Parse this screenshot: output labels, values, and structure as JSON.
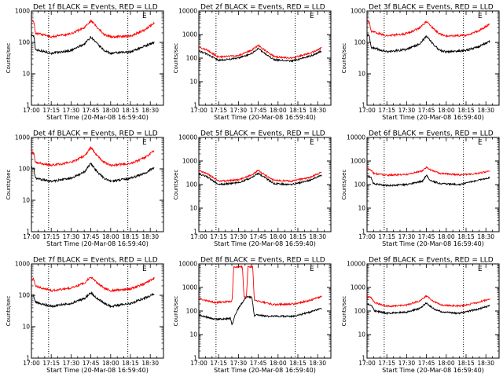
{
  "chart_data": {
    "type": "line",
    "time_ticks": [
      "17:00",
      "17:15",
      "17:30",
      "17:45",
      "18:00",
      "18:15",
      "18:30"
    ],
    "y_ticks": [
      "1",
      "10",
      "100",
      "1000",
      "10000"
    ],
    "series_colors": {
      "events": "#000000",
      "lld": "#ff0000"
    },
    "panels": [
      {
        "title": "Det 1f BLACK = Events, RED = LLD",
        "xlabel": "Start Time (20-Mar-08 16:59:40)",
        "ylabel": "Counts/sec",
        "ylim": [
          1,
          1000
        ],
        "y_ticks": [
          "1",
          "10",
          "100",
          "1000"
        ],
        "corner_mark": "E",
        "markers": [
          "17:13",
          "18:13"
        ],
        "events": [
          [
            17.0,
            170
          ],
          [
            17.03,
            160
          ],
          [
            17.05,
            60
          ],
          [
            17.25,
            45
          ],
          [
            17.5,
            55
          ],
          [
            17.67,
            90
          ],
          [
            17.75,
            150
          ],
          [
            17.83,
            90
          ],
          [
            17.92,
            55
          ],
          [
            18.0,
            45
          ],
          [
            18.25,
            50
          ],
          [
            18.42,
            75
          ],
          [
            18.55,
            100
          ]
        ],
        "lld": [
          [
            17.0,
            520
          ],
          [
            17.03,
            480
          ],
          [
            17.05,
            200
          ],
          [
            17.25,
            150
          ],
          [
            17.5,
            190
          ],
          [
            17.67,
            300
          ],
          [
            17.75,
            500
          ],
          [
            17.83,
            300
          ],
          [
            17.92,
            180
          ],
          [
            18.0,
            150
          ],
          [
            18.25,
            160
          ],
          [
            18.42,
            240
          ],
          [
            18.55,
            420
          ]
        ]
      },
      {
        "title": "Det 2f BLACK = Events, RED = LLD",
        "xlabel": "Start Time (20-Mar-08 16:59:40)",
        "ylabel": "Counts/sec",
        "ylim": [
          1,
          10000
        ],
        "y_ticks": [
          "1",
          "10",
          "100",
          "1000",
          "10000"
        ],
        "corner_mark": "E",
        "markers": [
          "17:13",
          "18:13"
        ],
        "events": [
          [
            17.0,
            200
          ],
          [
            17.1,
            150
          ],
          [
            17.25,
            80
          ],
          [
            17.5,
            100
          ],
          [
            17.67,
            160
          ],
          [
            17.75,
            260
          ],
          [
            17.83,
            160
          ],
          [
            17.95,
            85
          ],
          [
            18.17,
            75
          ],
          [
            18.4,
            120
          ],
          [
            18.55,
            200
          ]
        ],
        "lld": [
          [
            17.0,
            300
          ],
          [
            17.1,
            220
          ],
          [
            17.25,
            110
          ],
          [
            17.5,
            130
          ],
          [
            17.67,
            220
          ],
          [
            17.75,
            350
          ],
          [
            17.83,
            220
          ],
          [
            17.95,
            115
          ],
          [
            18.17,
            100
          ],
          [
            18.4,
            160
          ],
          [
            18.55,
            270
          ]
        ]
      },
      {
        "title": "Det 3f BLACK = Events, RED = LLD",
        "xlabel": "Start Time (20-Mar-08 16:59:40)",
        "ylabel": "Counts/sec",
        "ylim": [
          1,
          1000
        ],
        "y_ticks": [
          "1",
          "10",
          "100",
          "1000"
        ],
        "corner_mark": "E",
        "markers": [
          "17:13",
          "18:13"
        ],
        "events": [
          [
            17.0,
            170
          ],
          [
            17.03,
            160
          ],
          [
            17.05,
            70
          ],
          [
            17.25,
            50
          ],
          [
            17.5,
            60
          ],
          [
            17.67,
            90
          ],
          [
            17.75,
            160
          ],
          [
            17.83,
            90
          ],
          [
            17.92,
            55
          ],
          [
            18.0,
            50
          ],
          [
            18.25,
            55
          ],
          [
            18.42,
            75
          ],
          [
            18.55,
            110
          ]
        ],
        "lld": [
          [
            17.0,
            500
          ],
          [
            17.03,
            450
          ],
          [
            17.05,
            230
          ],
          [
            17.25,
            160
          ],
          [
            17.5,
            190
          ],
          [
            17.67,
            290
          ],
          [
            17.75,
            460
          ],
          [
            17.83,
            290
          ],
          [
            17.92,
            180
          ],
          [
            18.0,
            160
          ],
          [
            18.25,
            170
          ],
          [
            18.42,
            240
          ],
          [
            18.55,
            380
          ]
        ]
      },
      {
        "title": "Det 4f BLACK = Events, RED = LLD",
        "xlabel": "Start Time (20-Mar-08 16:59:40)",
        "ylabel": "Counts/sec",
        "ylim": [
          1,
          1000
        ],
        "y_ticks": [
          "1",
          "10",
          "100",
          "1000"
        ],
        "corner_mark": "E",
        "markers": [
          "17:13",
          "18:13"
        ],
        "events": [
          [
            17.0,
            110
          ],
          [
            17.03,
            100
          ],
          [
            17.05,
            50
          ],
          [
            17.25,
            40
          ],
          [
            17.5,
            50
          ],
          [
            17.67,
            80
          ],
          [
            17.75,
            150
          ],
          [
            17.83,
            80
          ],
          [
            17.92,
            50
          ],
          [
            18.0,
            40
          ],
          [
            18.25,
            50
          ],
          [
            18.42,
            70
          ],
          [
            18.55,
            110
          ]
        ],
        "lld": [
          [
            17.0,
            350
          ],
          [
            17.03,
            320
          ],
          [
            17.05,
            160
          ],
          [
            17.25,
            130
          ],
          [
            17.5,
            160
          ],
          [
            17.67,
            260
          ],
          [
            17.75,
            480
          ],
          [
            17.83,
            260
          ],
          [
            17.92,
            160
          ],
          [
            18.0,
            130
          ],
          [
            18.25,
            150
          ],
          [
            18.42,
            220
          ],
          [
            18.55,
            380
          ]
        ]
      },
      {
        "title": "Det 5f BLACK = Events, RED = LLD",
        "xlabel": "Start Time (20-Mar-08 16:59:40)",
        "ylabel": "Counts/sec",
        "ylim": [
          1,
          10000
        ],
        "y_ticks": [
          "1",
          "10",
          "100",
          "1000",
          "10000"
        ],
        "corner_mark": "E",
        "markers": [
          "17:13",
          "18:13"
        ],
        "events": [
          [
            17.0,
            280
          ],
          [
            17.1,
            220
          ],
          [
            17.25,
            100
          ],
          [
            17.5,
            120
          ],
          [
            17.67,
            200
          ],
          [
            17.75,
            300
          ],
          [
            17.83,
            200
          ],
          [
            17.95,
            110
          ],
          [
            18.17,
            100
          ],
          [
            18.4,
            150
          ],
          [
            18.55,
            250
          ]
        ],
        "lld": [
          [
            17.0,
            380
          ],
          [
            17.1,
            300
          ],
          [
            17.25,
            140
          ],
          [
            17.5,
            160
          ],
          [
            17.67,
            260
          ],
          [
            17.75,
            400
          ],
          [
            17.83,
            260
          ],
          [
            17.95,
            150
          ],
          [
            18.17,
            140
          ],
          [
            18.4,
            200
          ],
          [
            18.55,
            330
          ]
        ]
      },
      {
        "title": "Det 6f BLACK = Events, RED = LLD",
        "xlabel": "Start Time (20-Mar-08 16:59:40)",
        "ylabel": "Counts/sec",
        "ylim": [
          1,
          10000
        ],
        "y_ticks": [
          "1",
          "10",
          "100",
          "1000",
          "10000"
        ],
        "corner_mark": "E",
        "markers": [
          "17:13",
          "18:13"
        ],
        "events": [
          [
            17.0,
            250
          ],
          [
            17.05,
            200
          ],
          [
            17.08,
            110
          ],
          [
            17.25,
            90
          ],
          [
            17.5,
            100
          ],
          [
            17.7,
            140
          ],
          [
            17.75,
            250
          ],
          [
            17.8,
            150
          ],
          [
            17.92,
            110
          ],
          [
            18.17,
            100
          ],
          [
            18.4,
            150
          ],
          [
            18.55,
            200
          ]
        ],
        "lld": [
          [
            17.0,
            500
          ],
          [
            17.05,
            420
          ],
          [
            17.08,
            300
          ],
          [
            17.25,
            250
          ],
          [
            17.5,
            270
          ],
          [
            17.7,
            380
          ],
          [
            17.75,
            550
          ],
          [
            17.8,
            420
          ],
          [
            17.92,
            300
          ],
          [
            18.17,
            260
          ],
          [
            18.4,
            300
          ],
          [
            18.55,
            380
          ]
        ]
      },
      {
        "title": "Det 7f BLACK = Events, RED = LLD",
        "xlabel": "Start Time (20-Mar-08 16:59:40)",
        "ylabel": "Counts/sec",
        "ylim": [
          1,
          1000
        ],
        "y_ticks": [
          "1",
          "10",
          "100",
          "1000"
        ],
        "corner_mark": "E",
        "markers": [
          "17:13",
          "18:13"
        ],
        "events": [
          [
            17.0,
            100
          ],
          [
            17.03,
            95
          ],
          [
            17.05,
            60
          ],
          [
            17.25,
            45
          ],
          [
            17.5,
            55
          ],
          [
            17.67,
            80
          ],
          [
            17.75,
            120
          ],
          [
            17.83,
            80
          ],
          [
            17.92,
            55
          ],
          [
            18.0,
            45
          ],
          [
            18.25,
            55
          ],
          [
            18.42,
            80
          ],
          [
            18.55,
            110
          ]
        ],
        "lld": [
          [
            17.0,
            350
          ],
          [
            17.03,
            320
          ],
          [
            17.05,
            200
          ],
          [
            17.25,
            140
          ],
          [
            17.5,
            170
          ],
          [
            17.67,
            250
          ],
          [
            17.75,
            380
          ],
          [
            17.83,
            250
          ],
          [
            17.92,
            170
          ],
          [
            18.0,
            140
          ],
          [
            18.25,
            160
          ],
          [
            18.42,
            230
          ],
          [
            18.55,
            350
          ]
        ]
      },
      {
        "title": "Det 8f BLACK = Events, RED = LLD",
        "xlabel": "Start Time (20-Mar-08 16:59:40)",
        "ylabel": "Counts/sec",
        "ylim": [
          1,
          10000
        ],
        "y_ticks": [
          "1",
          "10",
          "100",
          "1000",
          "10000"
        ],
        "corner_mark": "E",
        "markers": [
          "17:13",
          "18:13"
        ],
        "events": [
          [
            17.0,
            70
          ],
          [
            17.05,
            60
          ],
          [
            17.2,
            45
          ],
          [
            17.4,
            48
          ],
          [
            17.42,
            25
          ],
          [
            17.45,
            60
          ],
          [
            17.5,
            130
          ],
          [
            17.6,
            400
          ],
          [
            17.67,
            380
          ],
          [
            17.7,
            60
          ],
          [
            17.72,
            70
          ],
          [
            17.85,
            60
          ],
          [
            17.95,
            60
          ],
          [
            18.2,
            60
          ],
          [
            18.4,
            90
          ],
          [
            18.55,
            130
          ]
        ],
        "lld": [
          [
            17.0,
            350
          ],
          [
            17.05,
            300
          ],
          [
            17.2,
            230
          ],
          [
            17.4,
            250
          ],
          [
            17.42,
            280
          ],
          [
            17.44,
            7500
          ],
          [
            17.55,
            7500
          ],
          [
            17.57,
            400
          ],
          [
            17.6,
            380
          ],
          [
            17.62,
            7500
          ],
          [
            17.68,
            7500
          ],
          [
            17.7,
            280
          ],
          [
            17.85,
            220
          ],
          [
            17.95,
            190
          ],
          [
            18.2,
            200
          ],
          [
            18.4,
            280
          ],
          [
            18.55,
            420
          ]
        ]
      },
      {
        "title": "Det 9f BLACK = Events, RED = LLD",
        "xlabel": "Start Time (20-Mar-08 16:59:40)",
        "ylabel": "Counts/sec",
        "ylim": [
          1,
          10000
        ],
        "y_ticks": [
          "1",
          "10",
          "100",
          "1000",
          "10000"
        ],
        "corner_mark": "E",
        "markers": [
          "17:13",
          "18:13"
        ],
        "events": [
          [
            17.0,
            200
          ],
          [
            17.05,
            180
          ],
          [
            17.1,
            100
          ],
          [
            17.25,
            80
          ],
          [
            17.5,
            90
          ],
          [
            17.67,
            130
          ],
          [
            17.75,
            220
          ],
          [
            17.83,
            130
          ],
          [
            17.95,
            90
          ],
          [
            18.17,
            80
          ],
          [
            18.4,
            120
          ],
          [
            18.55,
            170
          ]
        ],
        "lld": [
          [
            17.0,
            400
          ],
          [
            17.05,
            380
          ],
          [
            17.1,
            220
          ],
          [
            17.25,
            160
          ],
          [
            17.5,
            180
          ],
          [
            17.67,
            270
          ],
          [
            17.75,
            450
          ],
          [
            17.83,
            270
          ],
          [
            17.95,
            180
          ],
          [
            18.17,
            160
          ],
          [
            18.4,
            230
          ],
          [
            18.55,
            330
          ]
        ]
      }
    ]
  }
}
